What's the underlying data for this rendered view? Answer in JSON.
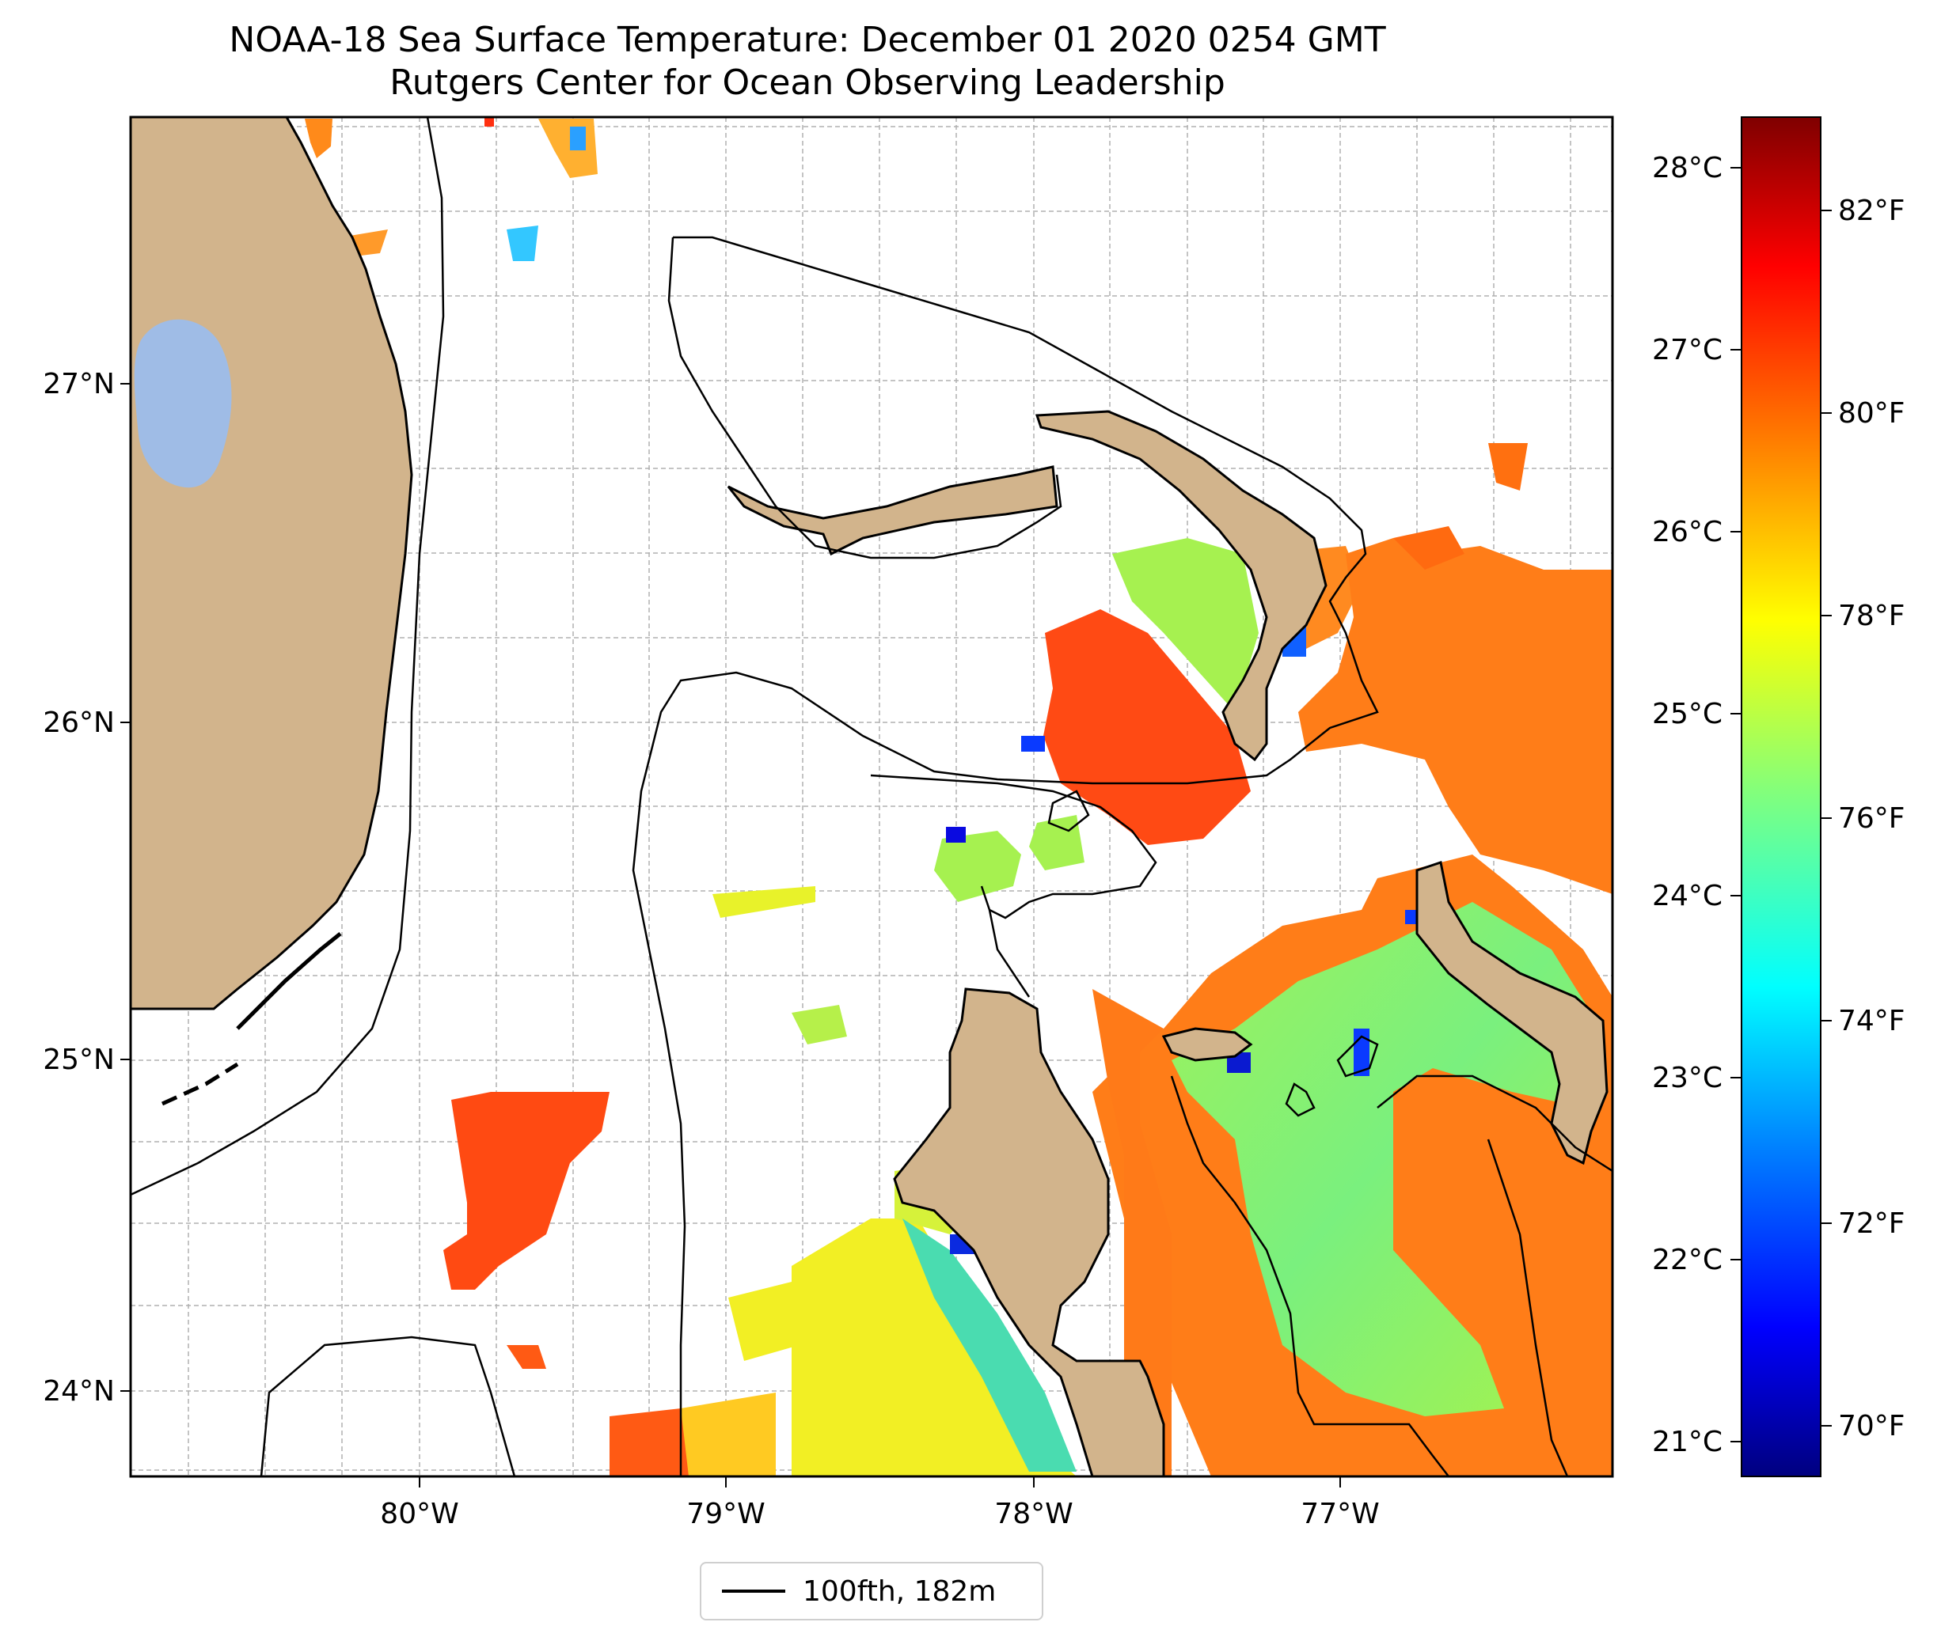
{
  "title": "NOAA-18 Sea Surface Temperature: December 01 2020 0254 GMT",
  "subtitle": "Rutgers Center for Ocean Observing Leadership",
  "axes": {
    "lat_ticks": [
      "27°N",
      "26°N",
      "25°N",
      "24°N"
    ],
    "lon_ticks": [
      "80°W",
      "79°W",
      "78°W",
      "77°W"
    ]
  },
  "colorbar": {
    "celsius_ticks": [
      "28°C",
      "27°C",
      "26°C",
      "25°C",
      "24°C",
      "23°C",
      "22°C",
      "21°C"
    ],
    "fahrenheit_ticks": [
      "82°F",
      "80°F",
      "78°F",
      "76°F",
      "74°F",
      "72°F",
      "70°F"
    ],
    "colormap": "jet",
    "colors": [
      "#00007f",
      "#0000ff",
      "#007fff",
      "#00ffff",
      "#7fff7f",
      "#ffff00",
      "#ff7f00",
      "#ff0000",
      "#7f0000"
    ]
  },
  "legend": {
    "label": "100fth, 182m"
  },
  "colors": {
    "land": "#d2b48c",
    "lake": "#9fbce6",
    "grid": "#b0b0b0"
  }
}
